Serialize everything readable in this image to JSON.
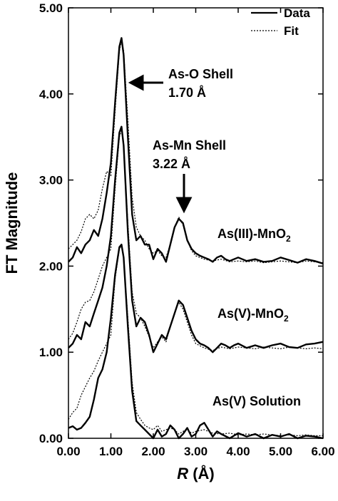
{
  "chart_data": {
    "type": "line",
    "title": "",
    "xlabel": "R (Å)",
    "xlabel_italic": "R",
    "xlabel_rest": " (Å)",
    "ylabel": "FT Magnitude",
    "xlim": [
      0,
      6
    ],
    "ylim": [
      0,
      5
    ],
    "x_ticks": [
      0,
      1,
      2,
      3,
      4,
      5,
      6
    ],
    "x_tick_labels": [
      "0.00",
      "1.00",
      "2.00",
      "3.00",
      "4.00",
      "5.00",
      "6.00"
    ],
    "y_ticks": [
      0,
      1,
      2,
      3,
      4,
      5
    ],
    "y_tick_labels": [
      "0.00",
      "1.00",
      "2.00",
      "3.00",
      "4.00",
      "5.00"
    ],
    "grid": false,
    "legend": {
      "position": "top-right",
      "entries": [
        {
          "label": "Data",
          "style": "solid"
        },
        {
          "label": "Fit",
          "style": "dotted"
        }
      ]
    },
    "annotations": {
      "as_o_line1": "As-O Shell",
      "as_o_line2": "1.70 Å",
      "as_mn_line1": "As-Mn Shell",
      "as_mn_line2": "3.22 Å",
      "label_as3_pre": "As(III)-MnO",
      "label_as3_sub": "2",
      "label_as5_pre": "As(V)-MnO",
      "label_as5_sub": "2",
      "label_sol": "As(V) Solution"
    },
    "series": [
      {
        "key": "as3_data",
        "style": "solid",
        "x": [
          0.0,
          0.1,
          0.2,
          0.3,
          0.4,
          0.5,
          0.6,
          0.7,
          0.8,
          0.9,
          1.0,
          1.1,
          1.2,
          1.25,
          1.3,
          1.4,
          1.5,
          1.6,
          1.7,
          1.8,
          1.9,
          2.0,
          2.1,
          2.2,
          2.3,
          2.4,
          2.5,
          2.6,
          2.7,
          2.8,
          2.9,
          3.0,
          3.1,
          3.2,
          3.3,
          3.4,
          3.5,
          3.6,
          3.7,
          3.8,
          3.9,
          4.0,
          4.2,
          4.4,
          4.6,
          4.8,
          5.0,
          5.2,
          5.4,
          5.6,
          5.8,
          6.0
        ],
        "y": [
          2.05,
          2.1,
          2.22,
          2.15,
          2.25,
          2.3,
          2.42,
          2.35,
          2.55,
          2.85,
          3.2,
          3.9,
          4.55,
          4.65,
          4.45,
          3.5,
          2.6,
          2.3,
          2.35,
          2.25,
          2.25,
          2.08,
          2.2,
          2.15,
          2.05,
          2.25,
          2.45,
          2.55,
          2.5,
          2.3,
          2.2,
          2.15,
          2.12,
          2.1,
          2.08,
          2.05,
          2.1,
          2.12,
          2.08,
          2.06,
          2.08,
          2.1,
          2.06,
          2.08,
          2.05,
          2.06,
          2.1,
          2.07,
          2.04,
          2.08,
          2.06,
          2.03
        ]
      },
      {
        "key": "as3_fit",
        "style": "dotted",
        "x": [
          0.0,
          0.1,
          0.2,
          0.3,
          0.4,
          0.5,
          0.6,
          0.7,
          0.8,
          0.9,
          1.0,
          1.1,
          1.2,
          1.25,
          1.3,
          1.4,
          1.5,
          1.6,
          1.7,
          1.8,
          1.9,
          2.0,
          2.1,
          2.2,
          2.3,
          2.4,
          2.5,
          2.6,
          2.7,
          2.8,
          2.9,
          3.0,
          3.2,
          3.4,
          3.6,
          3.8,
          4.0,
          4.2,
          4.4,
          4.6,
          4.8,
          5.0,
          5.2,
          5.4,
          5.6,
          5.8,
          6.0
        ],
        "y": [
          2.2,
          2.25,
          2.3,
          2.4,
          2.55,
          2.6,
          2.55,
          2.65,
          2.9,
          3.1,
          3.05,
          3.8,
          4.5,
          4.62,
          4.5,
          3.7,
          2.8,
          2.45,
          2.35,
          2.3,
          2.2,
          2.15,
          2.18,
          2.12,
          2.1,
          2.25,
          2.45,
          2.57,
          2.48,
          2.3,
          2.18,
          2.12,
          2.08,
          2.06,
          2.08,
          2.05,
          2.06,
          2.05,
          2.06,
          2.04,
          2.05,
          2.06,
          2.05,
          2.04,
          2.06,
          2.05,
          2.04
        ]
      },
      {
        "key": "as5_data",
        "style": "solid",
        "x": [
          0.0,
          0.1,
          0.2,
          0.3,
          0.4,
          0.5,
          0.6,
          0.7,
          0.8,
          0.9,
          1.0,
          1.1,
          1.2,
          1.25,
          1.3,
          1.4,
          1.5,
          1.6,
          1.7,
          1.8,
          1.9,
          2.0,
          2.1,
          2.2,
          2.3,
          2.4,
          2.5,
          2.6,
          2.7,
          2.8,
          2.9,
          3.0,
          3.1,
          3.2,
          3.3,
          3.4,
          3.5,
          3.6,
          3.7,
          3.8,
          3.9,
          4.0,
          4.2,
          4.4,
          4.6,
          4.8,
          5.0,
          5.2,
          5.4,
          5.6,
          5.8,
          6.0
        ],
        "y": [
          1.05,
          1.1,
          1.2,
          1.15,
          1.35,
          1.3,
          1.45,
          1.6,
          1.75,
          2.0,
          2.35,
          3.0,
          3.55,
          3.62,
          3.4,
          2.4,
          1.6,
          1.3,
          1.4,
          1.35,
          1.2,
          1.0,
          1.1,
          1.2,
          1.15,
          1.3,
          1.45,
          1.6,
          1.55,
          1.4,
          1.25,
          1.15,
          1.1,
          1.08,
          1.05,
          1.0,
          1.05,
          1.1,
          1.08,
          1.05,
          1.08,
          1.1,
          1.05,
          1.08,
          1.05,
          1.08,
          1.1,
          1.06,
          1.05,
          1.09,
          1.1,
          1.12
        ]
      },
      {
        "key": "as5_fit",
        "style": "dotted",
        "x": [
          0.0,
          0.1,
          0.2,
          0.3,
          0.4,
          0.5,
          0.6,
          0.7,
          0.8,
          0.9,
          1.0,
          1.1,
          1.2,
          1.25,
          1.3,
          1.4,
          1.5,
          1.6,
          1.7,
          1.8,
          1.9,
          2.0,
          2.1,
          2.2,
          2.3,
          2.4,
          2.5,
          2.6,
          2.7,
          2.8,
          2.9,
          3.0,
          3.2,
          3.4,
          3.6,
          3.8,
          4.0,
          4.2,
          4.4,
          4.6,
          4.8,
          5.0,
          5.2,
          5.4,
          5.6,
          5.8,
          6.0
        ],
        "y": [
          1.15,
          1.22,
          1.35,
          1.5,
          1.58,
          1.6,
          1.7,
          1.85,
          2.0,
          2.1,
          2.2,
          2.9,
          3.5,
          3.58,
          3.4,
          2.5,
          1.7,
          1.45,
          1.4,
          1.3,
          1.18,
          1.05,
          1.12,
          1.18,
          1.12,
          1.3,
          1.45,
          1.58,
          1.5,
          1.35,
          1.2,
          1.1,
          1.05,
          1.02,
          1.06,
          1.04,
          1.06,
          1.05,
          1.04,
          1.06,
          1.05,
          1.04,
          1.06,
          1.05,
          1.04,
          1.05,
          1.04
        ]
      },
      {
        "key": "sol_data",
        "style": "solid",
        "x": [
          0.0,
          0.1,
          0.2,
          0.3,
          0.4,
          0.5,
          0.6,
          0.7,
          0.8,
          0.9,
          1.0,
          1.1,
          1.2,
          1.25,
          1.3,
          1.4,
          1.5,
          1.6,
          1.7,
          1.8,
          1.9,
          2.0,
          2.1,
          2.2,
          2.3,
          2.4,
          2.5,
          2.6,
          2.7,
          2.8,
          2.9,
          3.0,
          3.1,
          3.2,
          3.3,
          3.4,
          3.5,
          3.6,
          3.8,
          4.0,
          4.2,
          4.4,
          4.6,
          4.8,
          5.0,
          5.2,
          5.4,
          5.6,
          5.8,
          6.0
        ],
        "y": [
          0.12,
          0.14,
          0.1,
          0.12,
          0.18,
          0.25,
          0.45,
          0.7,
          0.8,
          1.0,
          1.4,
          1.9,
          2.22,
          2.25,
          2.1,
          1.3,
          0.55,
          0.2,
          0.15,
          0.1,
          0.05,
          0.0,
          0.1,
          0.02,
          0.05,
          0.15,
          0.1,
          0.0,
          0.05,
          0.12,
          0.02,
          0.05,
          0.15,
          0.18,
          0.1,
          0.02,
          0.08,
          0.05,
          0.0,
          0.06,
          0.02,
          0.05,
          0.0,
          0.04,
          0.02,
          0.05,
          0.0,
          0.03,
          0.02,
          0.0
        ]
      },
      {
        "key": "sol_fit",
        "style": "dotted",
        "x": [
          0.0,
          0.1,
          0.2,
          0.3,
          0.4,
          0.5,
          0.6,
          0.7,
          0.8,
          0.9,
          1.0,
          1.1,
          1.2,
          1.25,
          1.3,
          1.4,
          1.5,
          1.6,
          1.7,
          1.8,
          1.9,
          2.0,
          2.1,
          2.2,
          2.3,
          2.4,
          2.5,
          2.6,
          2.7,
          2.8,
          2.9,
          3.0,
          3.2,
          3.4,
          3.6,
          3.8,
          4.0,
          4.2,
          4.4,
          4.6,
          4.8,
          5.0,
          5.2,
          5.4,
          5.6,
          5.8,
          6.0
        ],
        "y": [
          0.22,
          0.3,
          0.35,
          0.5,
          0.6,
          0.7,
          0.78,
          0.9,
          1.0,
          1.1,
          1.2,
          1.85,
          2.2,
          2.24,
          2.1,
          1.4,
          0.65,
          0.3,
          0.22,
          0.15,
          0.12,
          0.1,
          0.15,
          0.08,
          0.1,
          0.12,
          0.1,
          0.05,
          0.08,
          0.1,
          0.06,
          0.08,
          0.1,
          0.06,
          0.05,
          0.06,
          0.04,
          0.05,
          0.04,
          0.05,
          0.04,
          0.03,
          0.04,
          0.03,
          0.04,
          0.03,
          0.03
        ]
      }
    ]
  }
}
